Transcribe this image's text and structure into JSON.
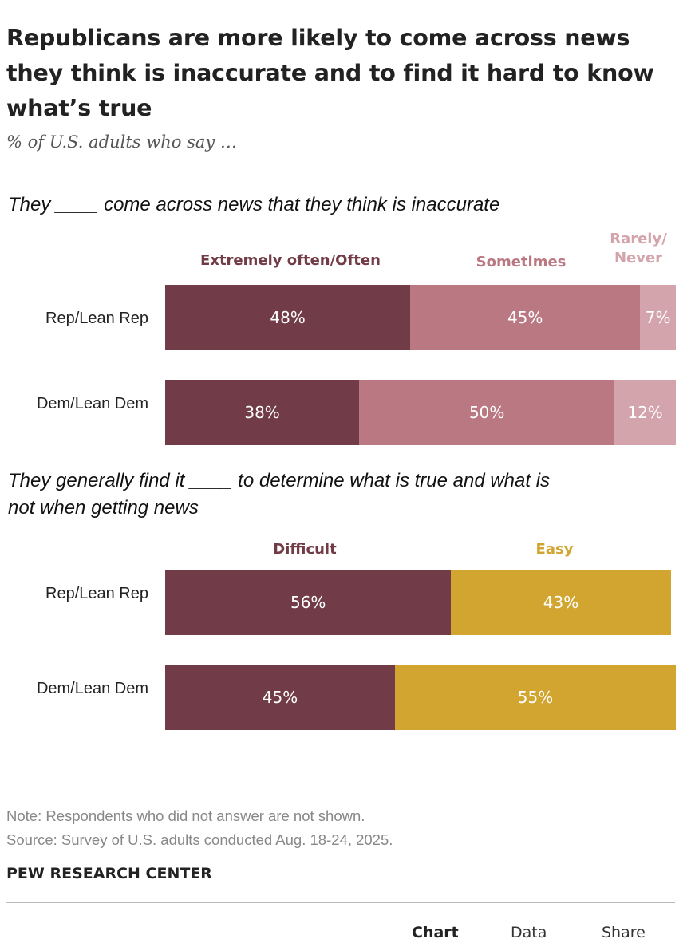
{
  "title": "Republicans are more likely to come across news they think is inaccurate and to find it hard to know what’s true",
  "subtitle": "% of U.S. adults who say …",
  "colors": {
    "often": "#713c48",
    "sometimes": "#ba7882",
    "rarely": "#d3a4ab",
    "difficult": "#713c48",
    "easy": "#d1a530"
  },
  "chart_data": [
    {
      "type": "bar",
      "orientation": "horizontal-stacked",
      "title": "They ____ come across news that they think is inaccurate",
      "categories": [
        "Rep/Lean Rep",
        "Dem/Lean Dem"
      ],
      "series": [
        {
          "name": "Extremely often/Often",
          "values": [
            48,
            38
          ],
          "labels": [
            "48%",
            "38%"
          ]
        },
        {
          "name": "Sometimes",
          "values": [
            45,
            50
          ],
          "labels": [
            "45%",
            "50%"
          ]
        },
        {
          "name": "Rarely/ Never",
          "values": [
            7,
            12
          ],
          "labels": [
            "7%",
            "12%"
          ]
        }
      ],
      "xlim": [
        0,
        100
      ]
    },
    {
      "type": "bar",
      "orientation": "horizontal-stacked",
      "title": "They generally find it ____ to determine what is true and what is not when getting news",
      "categories": [
        "Rep/Lean Rep",
        "Dem/Lean Dem"
      ],
      "series": [
        {
          "name": "Difficult",
          "values": [
            56,
            45
          ],
          "labels": [
            "56%",
            "45%"
          ]
        },
        {
          "name": "Easy",
          "values": [
            43,
            55
          ],
          "labels": [
            "43%",
            "55%"
          ]
        }
      ],
      "xlim": [
        0,
        100
      ]
    }
  ],
  "footer": {
    "note": "Note: Respondents who did not answer are not shown.",
    "source": "Source: Survey of U.S. adults conducted Aug. 18-24, 2025.",
    "org": "PEW RESEARCH CENTER"
  },
  "tabs": [
    "Chart",
    "Data",
    "Share"
  ]
}
